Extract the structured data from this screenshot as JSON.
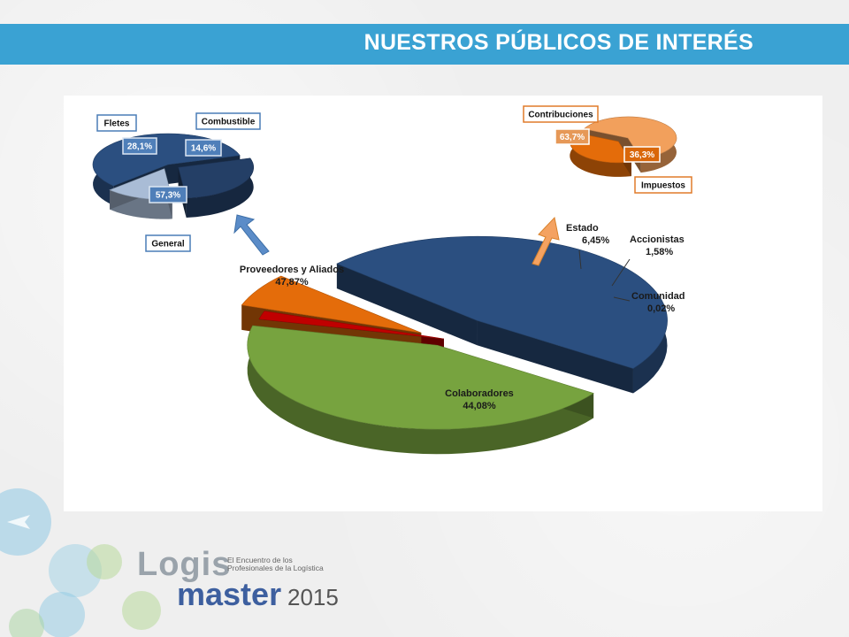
{
  "header": {
    "title": "NUESTROS PÚBLICOS DE INTERÉS"
  },
  "logo": {
    "word": "Logis",
    "tagline": "El Encuentro de los Profesionales de la Logística",
    "product": "master",
    "year": "2015"
  },
  "colors": {
    "header_bar": "#3aa2d3",
    "navy": "#2b4f80",
    "green": "#77a33f",
    "orange": "#e46c0a",
    "red": "#c00000",
    "dark_green": "#1f5a2e",
    "light_orange": "#f2a05c"
  },
  "chart_data": [
    {
      "type": "pie",
      "variant": "3d-exploded",
      "slices": [
        {
          "label": "Proveedores y Aliados",
          "value_text": "47,87%",
          "value": 47.87,
          "color": "#2b4f80"
        },
        {
          "label": "Colaboradores",
          "value_text": "44,08%",
          "value": 44.08,
          "color": "#77a33f"
        },
        {
          "label": "Comunidad",
          "value_text": "0,02%",
          "value": 0.02,
          "color": "#1f5a2e"
        },
        {
          "label": "Accionistas",
          "value_text": "1,58%",
          "value": 1.58,
          "color": "#c00000"
        },
        {
          "label": "Estado",
          "value_text": "6,45%",
          "value": 6.45,
          "color": "#e46c0a"
        }
      ]
    },
    {
      "type": "pie",
      "variant": "3d-exploded",
      "breakdown_of": "Proveedores y Aliados",
      "slices": [
        {
          "label": "General",
          "value_text": "57,3%",
          "value": 57.3,
          "color": "#2b4f80"
        },
        {
          "label": "Fletes",
          "value_text": "28,1%",
          "value": 28.1,
          "color": "#243f66"
        },
        {
          "label": "Combustible",
          "value_text": "14,6%",
          "value": 14.6,
          "color": "#a9bcd6"
        }
      ]
    },
    {
      "type": "pie",
      "variant": "3d-exploded",
      "breakdown_of": "Estado",
      "slices": [
        {
          "label": "Contribuciones",
          "value_text": "63,7%",
          "value": 63.7,
          "color": "#f2a05c"
        },
        {
          "label": "Impuestos",
          "value_text": "36,3%",
          "value": 36.3,
          "color": "#e46c0a"
        }
      ]
    }
  ]
}
